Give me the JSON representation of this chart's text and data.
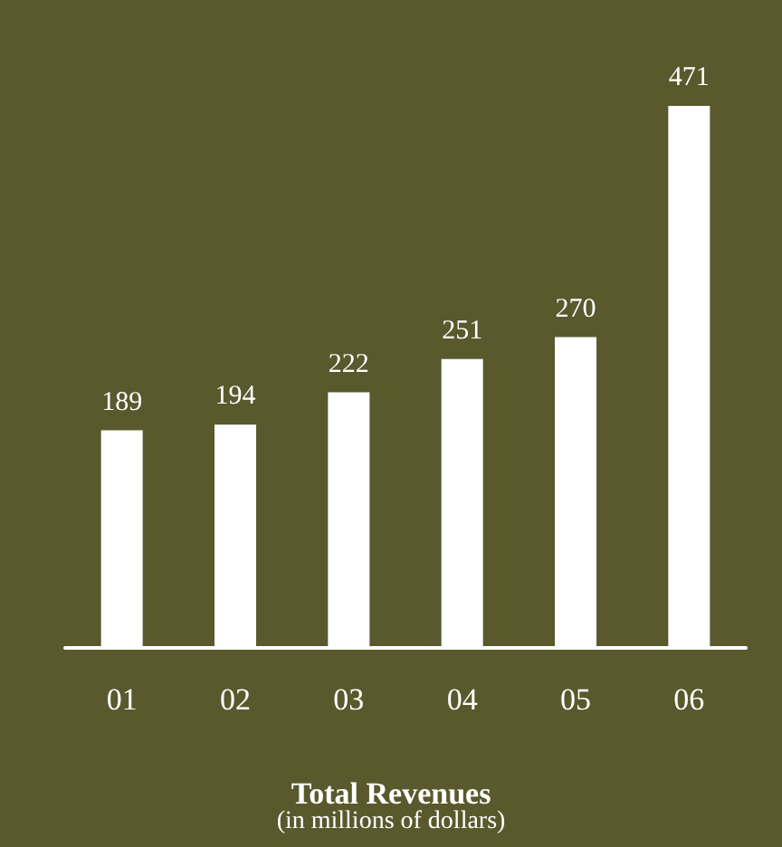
{
  "chart_data": {
    "type": "bar",
    "title": "Total Revenues",
    "subtitle": "(in millions of dollars)",
    "categories": [
      "01",
      "02",
      "03",
      "04",
      "05",
      "06"
    ],
    "values": [
      189,
      194,
      222,
      251,
      270,
      471
    ],
    "color": "#ffffff",
    "data_labels": true
  }
}
